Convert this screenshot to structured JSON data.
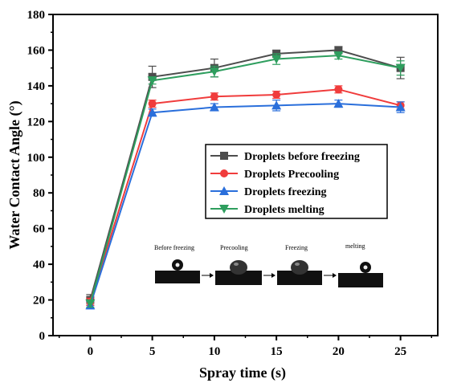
{
  "chart_data": {
    "type": "line",
    "xlabel": "Spray time (s)",
    "ylabel": "Water Contact Angle (°)",
    "xlim": [
      -3,
      28
    ],
    "ylim": [
      0,
      180
    ],
    "x": [
      0,
      5,
      10,
      15,
      20,
      25
    ],
    "xticks": [
      "0",
      "5",
      "10",
      "15",
      "20",
      "25"
    ],
    "yticks": [
      "0",
      "20",
      "40",
      "60",
      "80",
      "100",
      "120",
      "140",
      "160",
      "180"
    ],
    "grid": false,
    "legend_position": "center-right",
    "series": [
      {
        "name": "Droplets before freezing",
        "color": "#4d4d4d",
        "marker": "square",
        "values": [
          20,
          145,
          150,
          158,
          160,
          150
        ],
        "error": [
          3,
          6,
          5,
          2,
          2,
          6
        ]
      },
      {
        "name": "Droplets Precooling",
        "color": "#f03c3c",
        "marker": "circle",
        "values": [
          19,
          130,
          134,
          135,
          138,
          129
        ],
        "error": [
          2,
          2,
          2,
          2,
          2,
          2
        ]
      },
      {
        "name": "Droplets freezing",
        "color": "#2a6fdb",
        "marker": "triangle-up",
        "values": [
          17,
          125,
          128,
          129,
          130,
          128
        ],
        "error": [
          2,
          2,
          2,
          3,
          2,
          3
        ]
      },
      {
        "name": "Droplets melting",
        "color": "#2e9e5e",
        "marker": "triangle-down",
        "values": [
          18,
          143,
          148,
          155,
          157,
          150
        ],
        "error": [
          2,
          2,
          3,
          3,
          2,
          4
        ]
      }
    ],
    "inset": {
      "labels": [
        "Before freezing",
        "Precooling",
        "Freezing",
        "melting"
      ]
    }
  }
}
